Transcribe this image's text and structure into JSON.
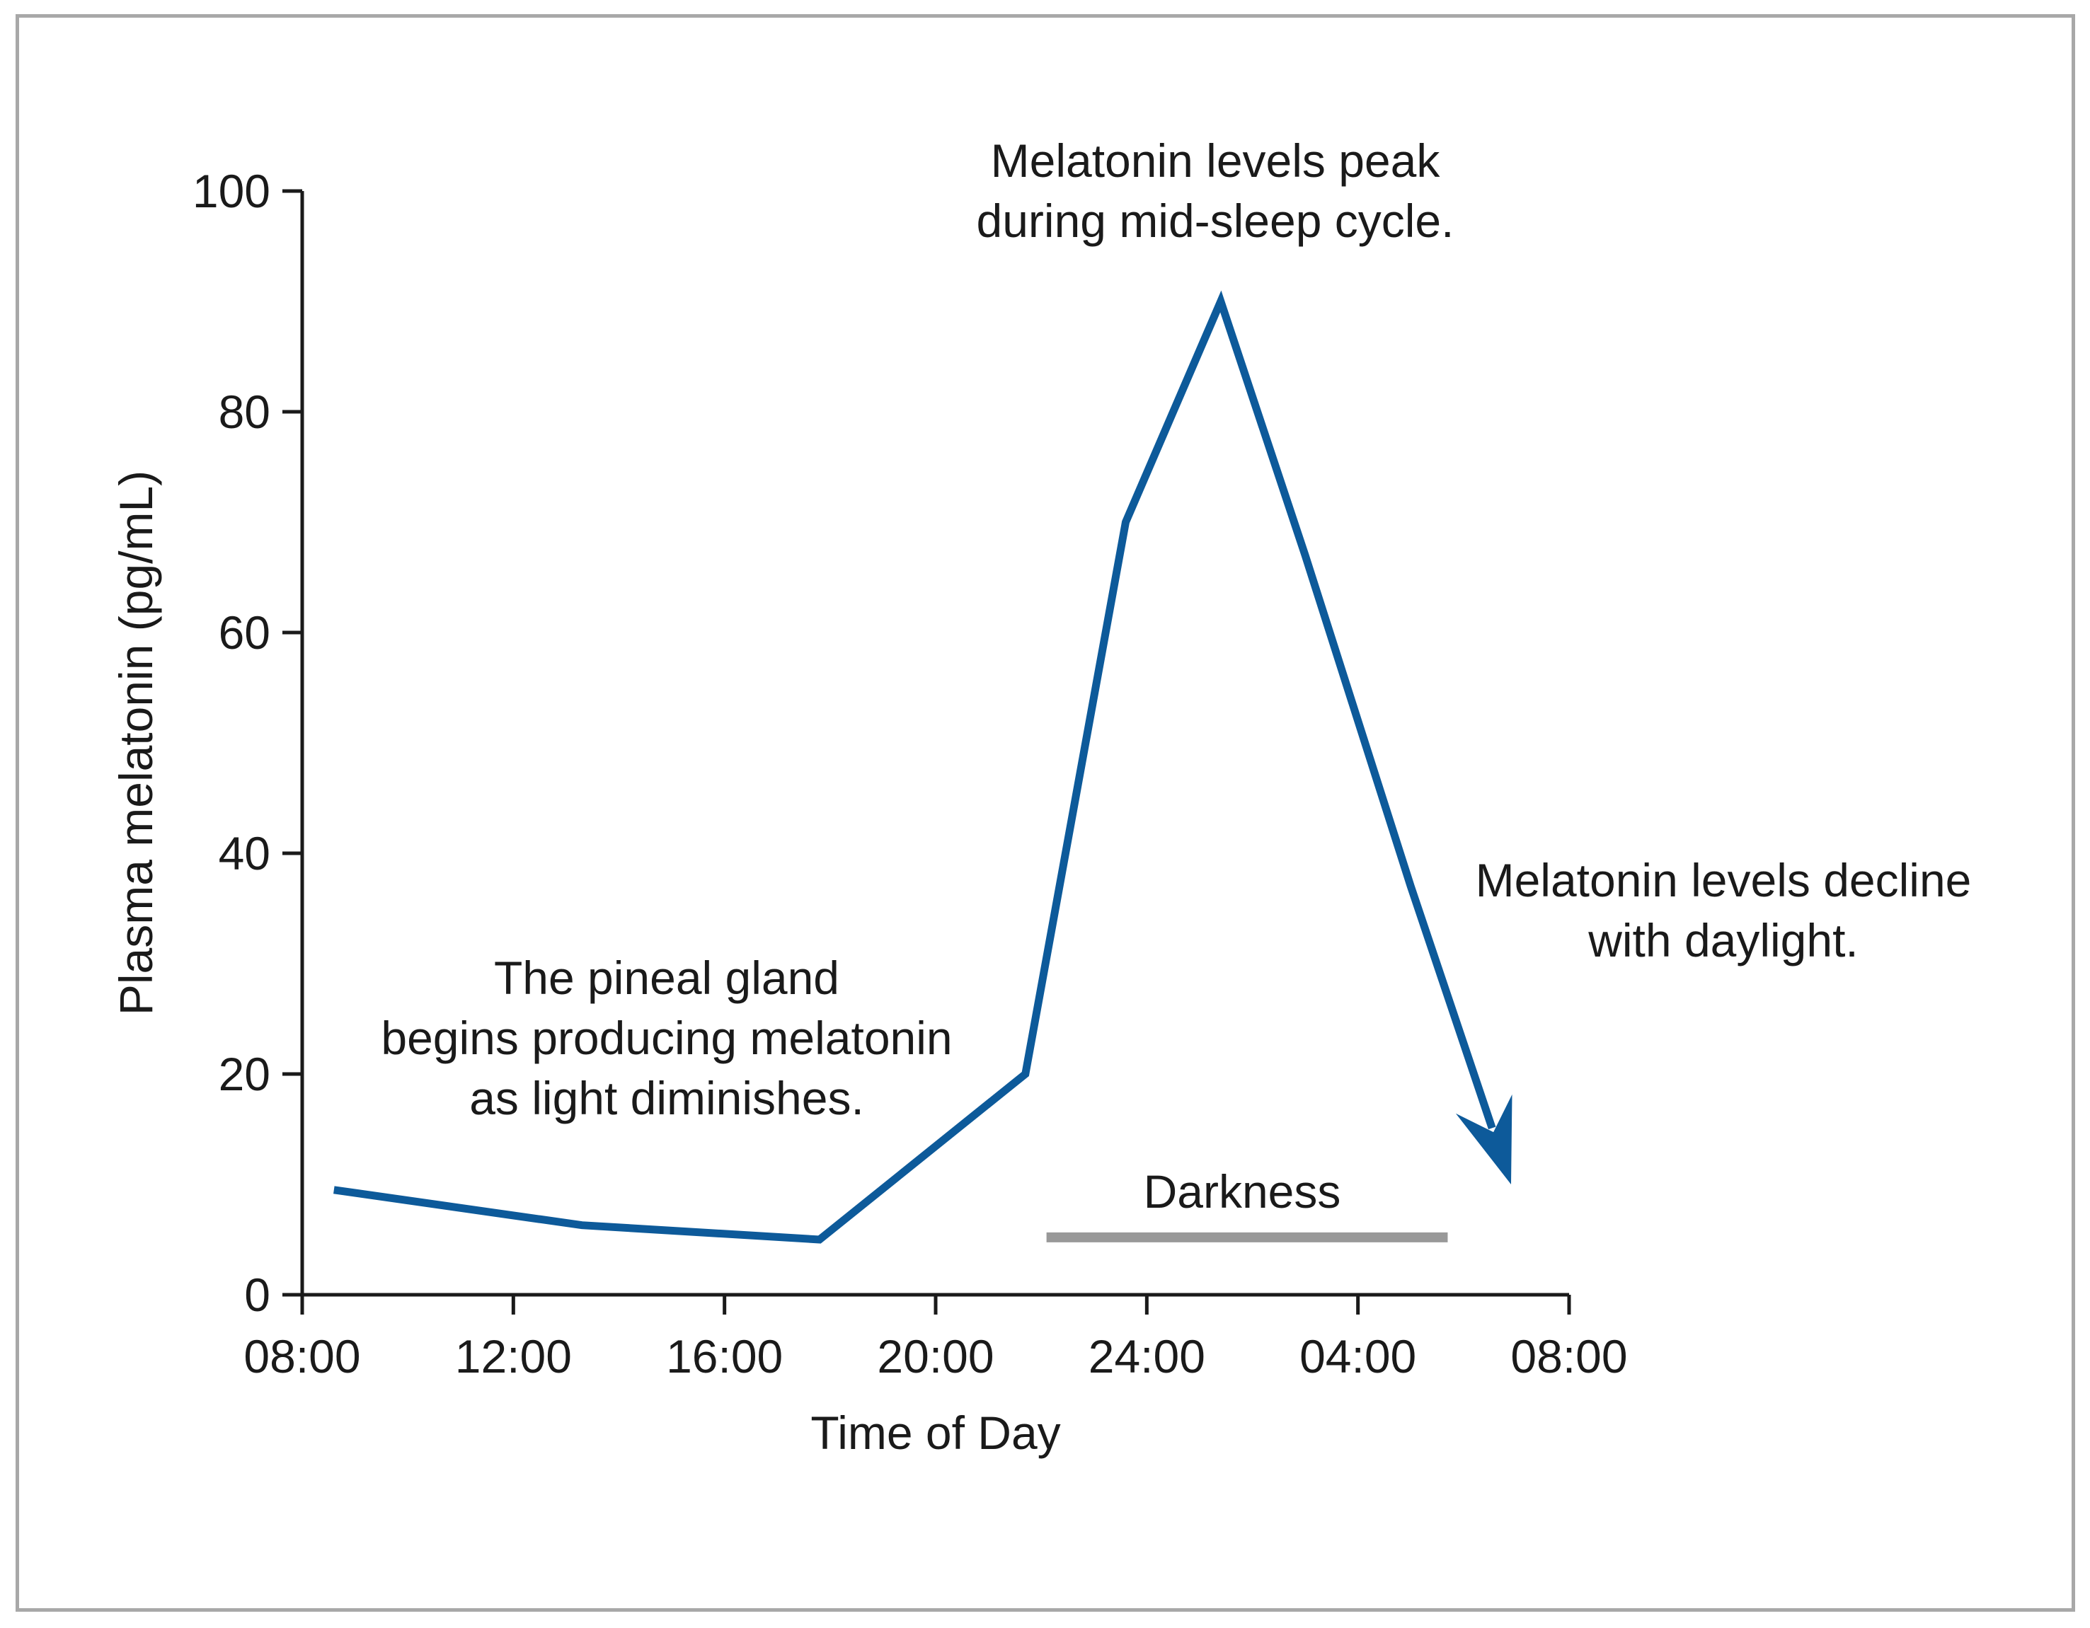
{
  "chart_data": {
    "type": "line",
    "title": "",
    "xlabel": "Time of Day",
    "ylabel": "Plasma melatonin (pg/mL)",
    "ylim": [
      0,
      100
    ],
    "yticks": [
      0,
      20,
      40,
      60,
      80,
      100
    ],
    "xlim_hours": [
      0,
      24
    ],
    "xticks": [
      {
        "hours": 0,
        "label": "08:00"
      },
      {
        "hours": 4,
        "label": "12:00"
      },
      {
        "hours": 8,
        "label": "16:00"
      },
      {
        "hours": 12,
        "label": "20:00"
      },
      {
        "hours": 16,
        "label": "24:00"
      },
      {
        "hours": 20,
        "label": "04:00"
      },
      {
        "hours": 24,
        "label": "08:00"
      }
    ],
    "series": [
      {
        "name": "Plasma melatonin",
        "color": "#0d5a9a",
        "x_hours": [
          0.6,
          5.3,
          9.8,
          13.7,
          15.6,
          16.5,
          17.4,
          19.0,
          21.0,
          22.9
        ],
        "values": [
          9.5,
          6.3,
          5.0,
          20.0,
          70.0,
          80.0,
          90.0,
          67.0,
          37.0,
          10.0
        ],
        "ends_with_arrow": true
      }
    ],
    "darkness_bar": {
      "label": "Darkness",
      "start_hours": 14.1,
      "end_hours": 21.7,
      "y_value": 5.2,
      "color": "#999999"
    },
    "annotations": [
      {
        "lines": [
          "Melatonin levels peak",
          "during mid-sleep cycle."
        ]
      },
      {
        "lines": [
          "Melatonin levels decline",
          "with daylight."
        ]
      },
      {
        "lines": [
          "The pineal gland",
          "begins producing melatonin",
          "as light diminishes."
        ]
      }
    ]
  }
}
